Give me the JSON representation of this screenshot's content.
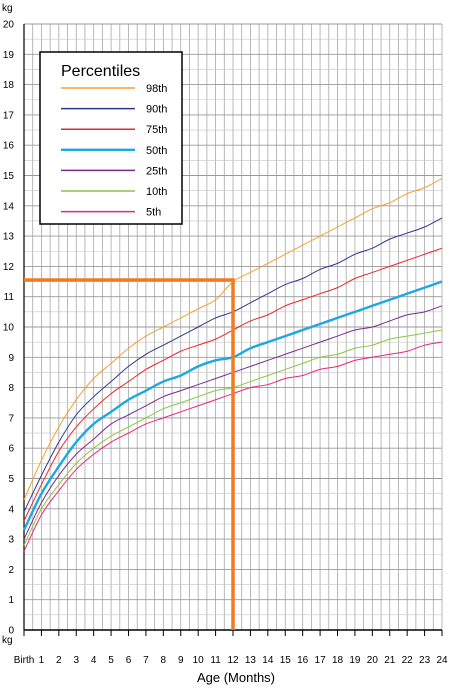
{
  "chart_data": {
    "type": "line",
    "ylabel": "kg",
    "xlabel": "Age (Months)",
    "x": [
      0,
      1,
      2,
      3,
      4,
      5,
      6,
      7,
      8,
      9,
      10,
      11,
      12,
      13,
      14,
      15,
      16,
      17,
      18,
      19,
      20,
      21,
      22,
      23,
      24
    ],
    "x_tick_labels": [
      "Birth",
      "1",
      "2",
      "3",
      "4",
      "5",
      "6",
      "7",
      "8",
      "9",
      "10",
      "11",
      "12",
      "13",
      "14",
      "15",
      "16",
      "17",
      "18",
      "19",
      "20",
      "21",
      "22",
      "23",
      "24"
    ],
    "xlim": [
      0,
      24
    ],
    "ylim": [
      0,
      20
    ],
    "y_ticks": [
      0,
      1,
      2,
      3,
      4,
      5,
      6,
      7,
      8,
      9,
      10,
      11,
      12,
      13,
      14,
      15,
      16,
      17,
      18,
      19,
      20
    ],
    "grid": true,
    "legend": {
      "title": "Percentiles",
      "position": "top-left"
    },
    "series": [
      {
        "name": "98th",
        "color": "#f5a030",
        "stroke_width": 1,
        "values": [
          4.3,
          5.6,
          6.7,
          7.6,
          8.3,
          8.8,
          9.3,
          9.7,
          10.0,
          10.3,
          10.6,
          10.9,
          11.5,
          11.8,
          12.1,
          12.4,
          12.7,
          13.0,
          13.3,
          13.6,
          13.9,
          14.1,
          14.4,
          14.6,
          14.9
        ]
      },
      {
        "name": "90th",
        "color": "#2b3a8f",
        "stroke_width": 1,
        "values": [
          3.9,
          5.1,
          6.2,
          7.1,
          7.7,
          8.2,
          8.7,
          9.1,
          9.4,
          9.7,
          10.0,
          10.3,
          10.5,
          10.8,
          11.1,
          11.4,
          11.6,
          11.9,
          12.1,
          12.4,
          12.6,
          12.9,
          13.1,
          13.3,
          13.6
        ]
      },
      {
        "name": "75th",
        "color": "#e8272b",
        "stroke_width": 1,
        "values": [
          3.6,
          4.8,
          5.9,
          6.7,
          7.3,
          7.8,
          8.2,
          8.6,
          8.9,
          9.2,
          9.4,
          9.6,
          9.9,
          10.2,
          10.4,
          10.7,
          10.9,
          11.1,
          11.3,
          11.6,
          11.8,
          12.0,
          12.2,
          12.4,
          12.6
        ]
      },
      {
        "name": "50th",
        "color": "#1ea7e0",
        "stroke_width": 2.4,
        "values": [
          3.3,
          4.5,
          5.4,
          6.2,
          6.8,
          7.2,
          7.6,
          7.9,
          8.2,
          8.4,
          8.7,
          8.9,
          9.0,
          9.3,
          9.5,
          9.7,
          9.9,
          10.1,
          10.3,
          10.5,
          10.7,
          10.9,
          11.1,
          11.3,
          11.5
        ]
      },
      {
        "name": "25th",
        "color": "#7a2a8e",
        "stroke_width": 1,
        "values": [
          3.0,
          4.2,
          5.1,
          5.8,
          6.3,
          6.8,
          7.1,
          7.4,
          7.7,
          7.9,
          8.1,
          8.3,
          8.5,
          8.7,
          8.9,
          9.1,
          9.3,
          9.5,
          9.7,
          9.9,
          10.0,
          10.2,
          10.4,
          10.5,
          10.7
        ]
      },
      {
        "name": "10th",
        "color": "#8cc640",
        "stroke_width": 1,
        "values": [
          2.8,
          4.0,
          4.8,
          5.5,
          6.0,
          6.4,
          6.7,
          7.0,
          7.3,
          7.5,
          7.7,
          7.9,
          8.0,
          8.2,
          8.4,
          8.6,
          8.8,
          9.0,
          9.1,
          9.3,
          9.4,
          9.6,
          9.7,
          9.8,
          9.9
        ]
      },
      {
        "name": "5th",
        "color": "#e8277c",
        "stroke_width": 1,
        "values": [
          2.6,
          3.8,
          4.6,
          5.3,
          5.8,
          6.2,
          6.5,
          6.8,
          7.0,
          7.2,
          7.4,
          7.6,
          7.8,
          8.0,
          8.1,
          8.3,
          8.4,
          8.6,
          8.7,
          8.9,
          9.0,
          9.1,
          9.2,
          9.4,
          9.5
        ]
      }
    ],
    "annotation": {
      "color": "#f47a20",
      "x": 12,
      "y": 11.55
    }
  }
}
